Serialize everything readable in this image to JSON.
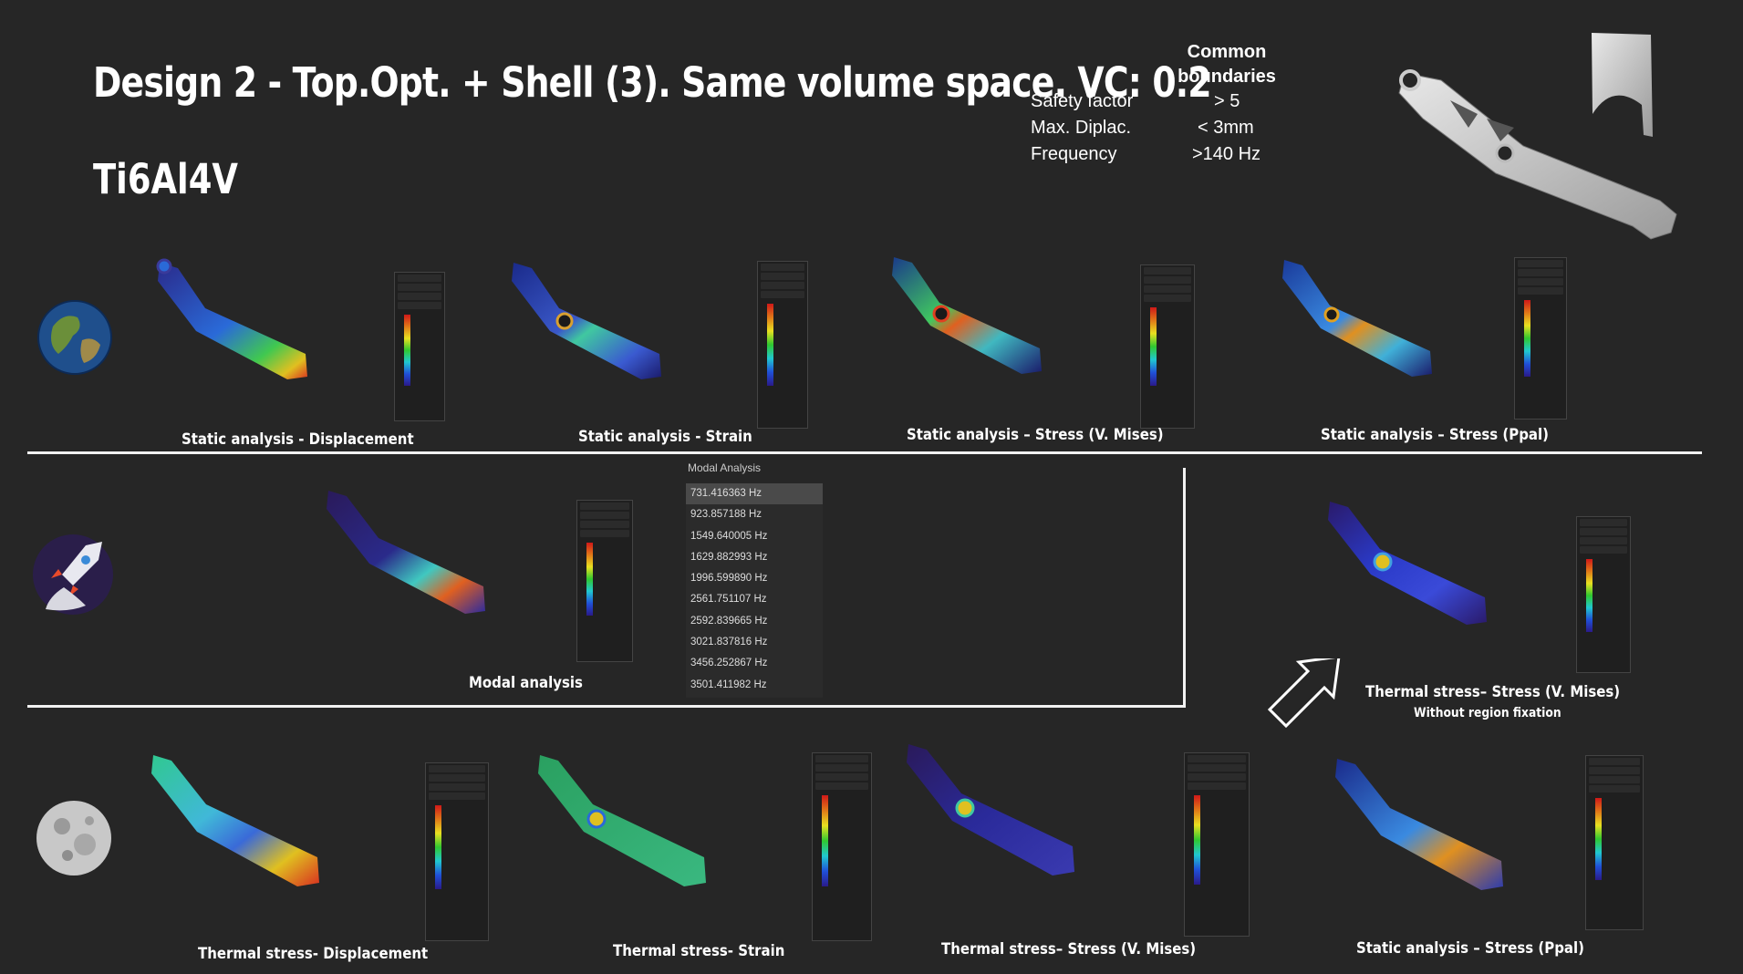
{
  "title": "Design 2 - Top.Opt. + Shell (3). Same volume space. VC: 0.2",
  "material": "Ti6Al4V",
  "boundaries": {
    "heading_line1": "Common",
    "heading_line2": "boundaries",
    "rows": [
      {
        "label": "Safety factor",
        "value": "> 5"
      },
      {
        "label": "Max. Diplac.",
        "value": "< 3mm"
      },
      {
        "label": "Frequency",
        "value": ">140 Hz"
      }
    ]
  },
  "row1": {
    "captions": [
      "Static analysis - Displacement",
      "Static analysis - Strain",
      "Static analysis – Stress (V. Mises)",
      "Static analysis – Stress (Ppal)"
    ]
  },
  "row2": {
    "modal_caption": "Modal analysis",
    "modal_header": "Modal Analysis",
    "frequencies": [
      "731.416363 Hz",
      "923.857188 Hz",
      "1549.640005 Hz",
      "1629.882993 Hz",
      "1996.599890 Hz",
      "2561.751107 Hz",
      "2592.839665 Hz",
      "3021.837816 Hz",
      "3456.252867 Hz",
      "3501.411982 Hz"
    ],
    "thermal_caption": "Thermal stress– Stress (V. Mises)",
    "thermal_subcaption": "Without region fixation"
  },
  "row3": {
    "captions": [
      "Thermal stress- Displacement",
      "Thermal stress- Strain",
      "Thermal stress– Stress (V. Mises)",
      "Static analysis – Stress (Ppal)"
    ]
  },
  "icons": [
    "earth-icon",
    "rocket-icon",
    "moon-icon",
    "arrow-icon"
  ],
  "colors": {
    "background": "#262626",
    "text": "#ffffff",
    "divider": "#f2f2f2"
  }
}
